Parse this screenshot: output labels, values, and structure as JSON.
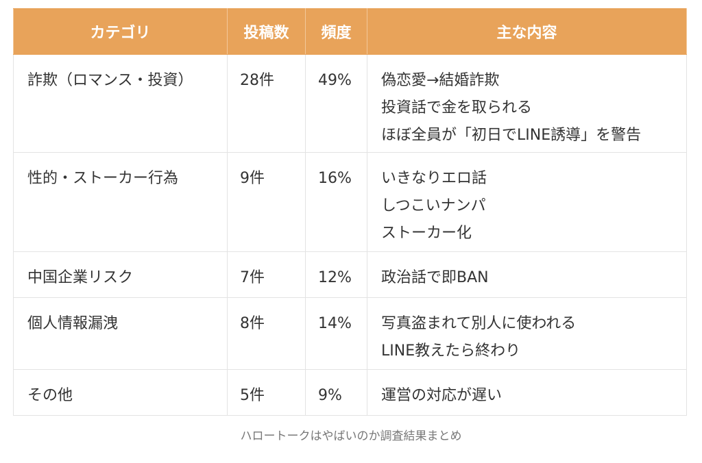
{
  "table": {
    "headers": [
      "カテゴリ",
      "投稿数",
      "頻度",
      "主な内容"
    ],
    "rows": [
      {
        "category": "詐欺（ロマンス・投資）",
        "count": "28件",
        "frequency": "49%",
        "contents": [
          "偽恋愛→結婚詐欺",
          "投資話で金を取られる",
          "ほぼ全員が「初日でLINE誘導」を警告"
        ]
      },
      {
        "category": "性的・ストーカー行為",
        "count": "9件",
        "frequency": "16%",
        "contents": [
          "いきなりエロ話",
          "しつこいナンパ",
          "ストーカー化"
        ]
      },
      {
        "category": "中国企業リスク",
        "count": "7件",
        "frequency": "12%",
        "contents": [
          "政治話で即BAN"
        ]
      },
      {
        "category": "個人情報漏洩",
        "count": "8件",
        "frequency": "14%",
        "contents": [
          "写真盗まれて別人に使われる",
          "LINE教えたら終わり"
        ]
      },
      {
        "category": "その他",
        "count": "5件",
        "frequency": "9%",
        "contents": [
          "運営の対応が遅い"
        ]
      }
    ]
  },
  "caption": "ハロートークはやばいのか調査結果まとめ",
  "colors": {
    "header_bg": "#e8a35a",
    "header_text": "#ffffff",
    "border": "#e3e3e3",
    "body_text": "#333333",
    "caption_text": "#777777"
  }
}
